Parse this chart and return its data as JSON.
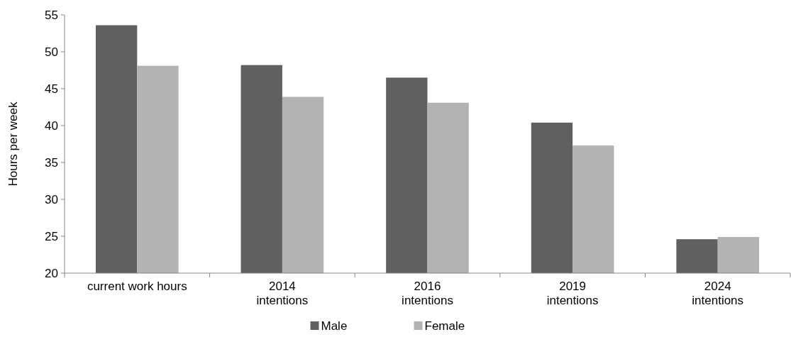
{
  "chart_data": {
    "type": "bar",
    "ylabel": "Hours per week",
    "categories": [
      "current work hours",
      "2014\nintentions",
      "2016\nintentions",
      "2019\nintentions",
      "2024\nintentions"
    ],
    "series": [
      {
        "name": "Male",
        "color": "#606060",
        "values": [
          53.6,
          48.2,
          46.5,
          40.4,
          24.6
        ]
      },
      {
        "name": "Female",
        "color": "#b3b3b3",
        "values": [
          48.1,
          43.9,
          43.1,
          37.3,
          24.9
        ]
      }
    ],
    "ylim": [
      20,
      55
    ],
    "yticks": [
      20,
      25,
      30,
      35,
      40,
      45,
      50,
      55
    ],
    "grid": false,
    "legend": "bottom"
  }
}
